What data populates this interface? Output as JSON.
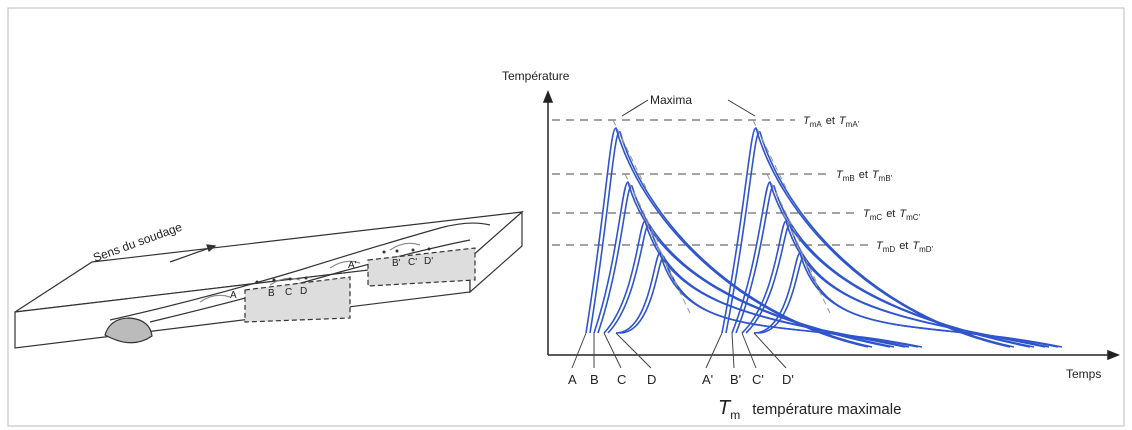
{
  "left": {
    "direction": "Sens du soudage",
    "points": [
      "A",
      "B",
      "C",
      "D"
    ],
    "points_prime": [
      "A'",
      "B'",
      "C'",
      "D'"
    ]
  },
  "right": {
    "y_label": "Température",
    "x_label": "Temps",
    "maxima": "Maxima",
    "levels": [
      {
        "left": {
          "symbol": "T",
          "sub": "mA"
        },
        "joiner": "et",
        "right": {
          "symbol": "T",
          "sub": "mA'"
        }
      },
      {
        "left": {
          "symbol": "T",
          "sub": "mB"
        },
        "joiner": "et",
        "right": {
          "symbol": "T",
          "sub": "mB'"
        }
      },
      {
        "left": {
          "symbol": "T",
          "sub": "mC"
        },
        "joiner": "et",
        "right": {
          "symbol": "T",
          "sub": "mC'"
        }
      },
      {
        "left": {
          "symbol": "T",
          "sub": "mD"
        },
        "joiner": "et",
        "right": {
          "symbol": "T",
          "sub": "mD'"
        }
      }
    ],
    "start_labels": [
      "A",
      "B",
      "C",
      "D",
      "A'",
      "B'",
      "C'",
      "D'"
    ],
    "legend": {
      "symbol": "T",
      "sub": "m",
      "text": "température maximale"
    }
  }
}
